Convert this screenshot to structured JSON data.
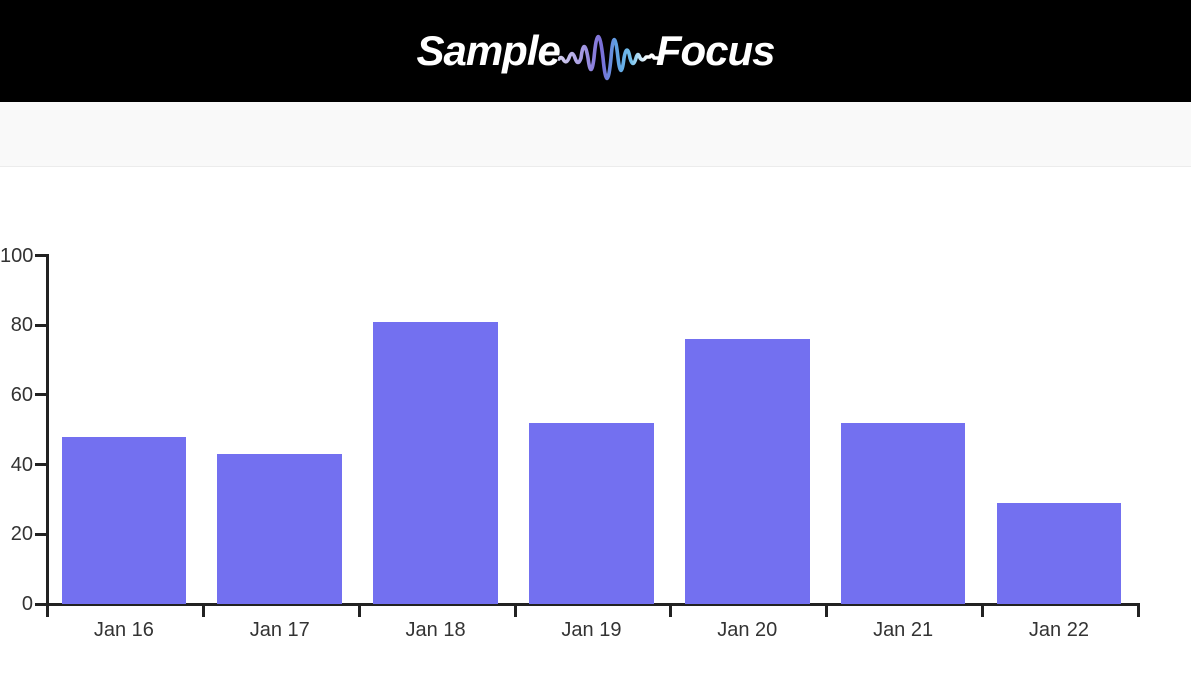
{
  "header": {
    "background": "#000000",
    "logo": {
      "word1": "Sample",
      "word2": "Focus",
      "icon": "audio-waveform-icon",
      "text_color": "#ffffff",
      "wave_gradient": [
        "#d6d2ee",
        "#a79ce3",
        "#7a6ed8",
        "#5fa0e2",
        "#72c0ec",
        "#ffffff"
      ]
    }
  },
  "subheader": {
    "background": "#f9f9f9",
    "border_color": "#ececec"
  },
  "chart_data": {
    "type": "bar",
    "categories": [
      "Jan 16",
      "Jan 17",
      "Jan 18",
      "Jan 19",
      "Jan 20",
      "Jan 21",
      "Jan 22"
    ],
    "values": [
      48,
      43,
      81,
      52,
      76,
      52,
      29
    ],
    "title": "",
    "xlabel": "",
    "ylabel": "",
    "ylim": [
      0,
      100
    ],
    "yticks": [
      0,
      20,
      40,
      60,
      80,
      100
    ],
    "bar_color": "#7370f0",
    "axis_color": "#222222",
    "tick_label_color": "#333333",
    "grid": false,
    "legend": "none"
  }
}
